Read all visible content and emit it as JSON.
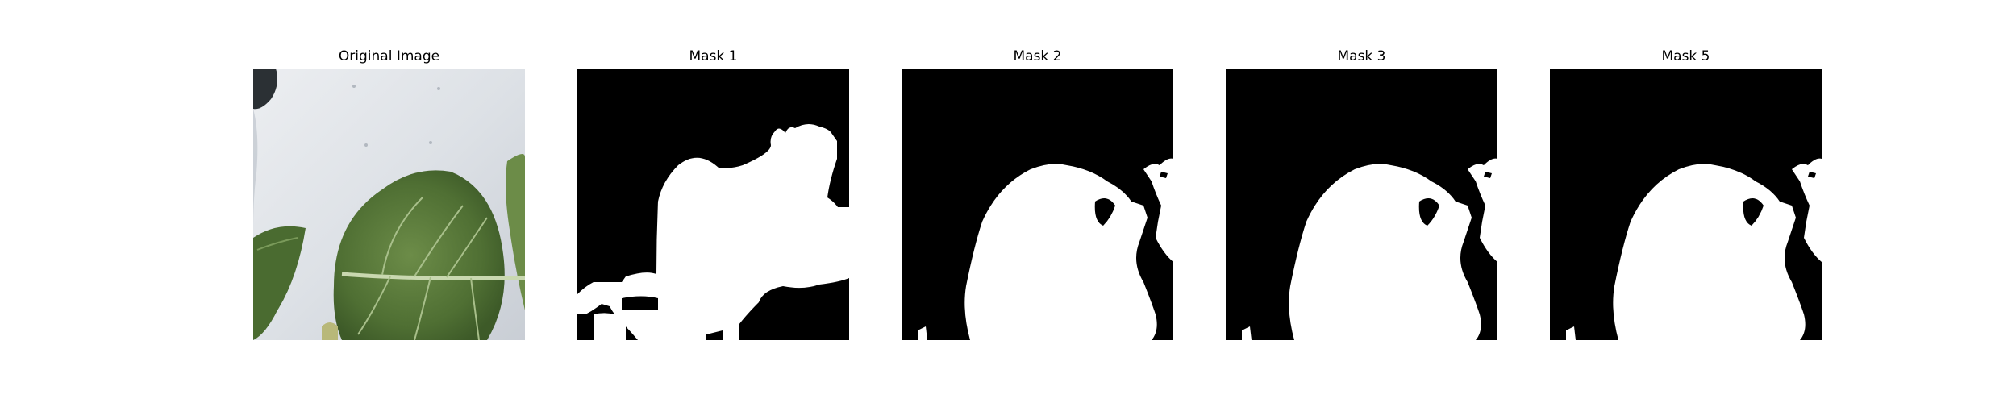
{
  "panels": [
    {
      "id": "original",
      "title": "Original Image"
    },
    {
      "id": "mask1",
      "title": "Mask 1"
    },
    {
      "id": "mask2",
      "title": "Mask 2"
    },
    {
      "id": "mask3",
      "title": "Mask 3"
    },
    {
      "id": "mask5",
      "title": "Mask 5"
    }
  ],
  "colors": {
    "background": "#ffffff",
    "mask_background": "#000000",
    "mask_foreground": "#ffffff",
    "surface_light": "#d9dde3",
    "leaf_dark": "#3f5f2c",
    "leaf_mid": "#5e7f3d",
    "vein": "#c9d8b0"
  }
}
